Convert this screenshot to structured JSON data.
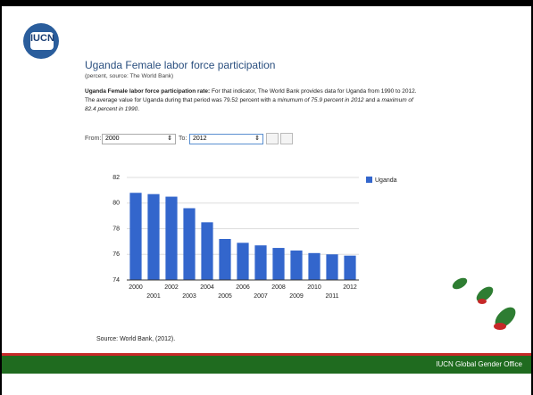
{
  "logo": "IUCN",
  "heading": {
    "title": "Uganda Female labor force participation",
    "subtitle": "(percent, source: The World Bank)"
  },
  "description": {
    "lead": "Uganda Female labor force participation rate:",
    "text1": " For that indicator, The World Bank provides data for Uganda from 1990 to 2012. The average value for Uganda during that period was 79.52 percent with a ",
    "italic1": "minumum of 75.9 percent in 2012",
    "text2": " and a ",
    "italic2": "maximum of 82.4 percent in 1990",
    "text3": "."
  },
  "controls": {
    "from_label": "From:",
    "from_value": "2000",
    "to_label": "To:",
    "to_value": "2012"
  },
  "chart_data": {
    "type": "bar",
    "categories": [
      "2000",
      "2001",
      "2002",
      "2003",
      "2004",
      "2005",
      "2006",
      "2007",
      "2008",
      "2009",
      "2010",
      "2011",
      "2012"
    ],
    "series": [
      {
        "name": "Uganda",
        "color": "#3366cc",
        "values": [
          80.8,
          80.7,
          80.5,
          79.6,
          78.5,
          77.2,
          76.9,
          76.7,
          76.5,
          76.3,
          76.1,
          76.0,
          75.9
        ]
      }
    ],
    "ylim": [
      74,
      82
    ],
    "yticks": [
      74,
      76,
      78,
      80,
      82
    ],
    "grid": true,
    "legend": "right"
  },
  "source": "Source: World Bank, (2012).",
  "footer": "IUCN Global Gender Office"
}
